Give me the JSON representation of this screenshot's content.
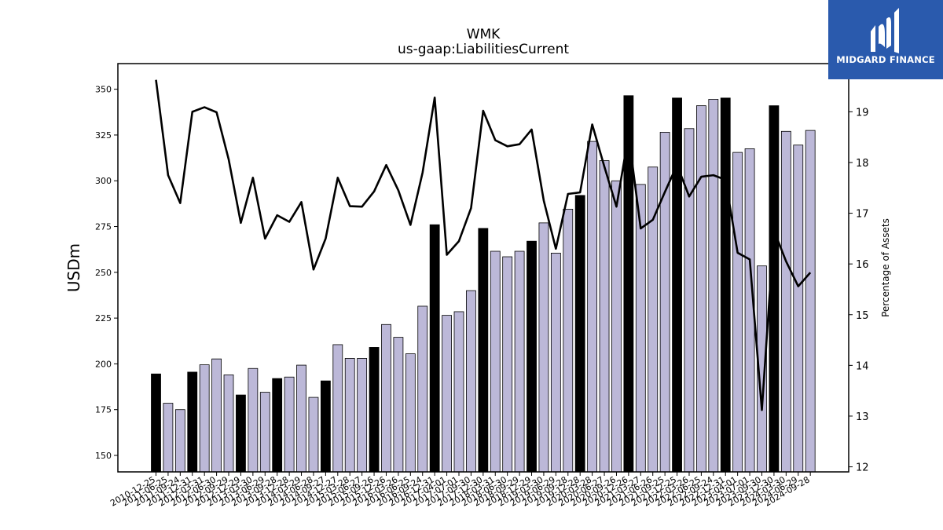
{
  "brand": {
    "name": "MIDGARD FINANCE"
  },
  "chart_data": {
    "type": "bar",
    "title": "WMK",
    "subtitle": "us-gaap:LiabilitiesCurrent",
    "ylabel": "USDm",
    "y2label": "Percentage of Assets",
    "ylim": [
      141,
      364
    ],
    "y2lim": [
      11.9,
      19.95
    ],
    "yticks": [
      150,
      175,
      200,
      225,
      250,
      275,
      300,
      325,
      350
    ],
    "y2ticks": [
      12,
      13,
      14,
      15,
      16,
      17,
      18,
      19
    ],
    "colors": {
      "annual": "#000000",
      "quarter": "#bcb8d8",
      "line": "#000000"
    },
    "categories": [
      "2010-12-25",
      "2011-06-25",
      "2011-09-24",
      "2011-12-31",
      "2012-03-31",
      "2012-06-30",
      "2012-09-29",
      "2012-12-29",
      "2013-03-30",
      "2013-06-29",
      "2013-09-28",
      "2013-12-28",
      "2014-03-29",
      "2014-06-28",
      "2014-09-27",
      "2014-12-27",
      "2015-03-28",
      "2015-06-27",
      "2015-09-26",
      "2015-12-26",
      "2016-03-26",
      "2016-06-25",
      "2016-09-24",
      "2016-12-31",
      "2017-04-01",
      "2017-07-01",
      "2017-09-30",
      "2017-12-30",
      "2018-03-31",
      "2018-06-30",
      "2018-09-29",
      "2018-12-29",
      "2019-03-30",
      "2019-06-29",
      "2019-09-28",
      "2019-12-28",
      "2020-03-28",
      "2020-06-27",
      "2020-09-26",
      "2020-12-26",
      "2021-03-27",
      "2021-06-26",
      "2021-09-25",
      "2021-12-25",
      "2022-03-26",
      "2022-06-25",
      "2022-09-24",
      "2022-12-31",
      "2023-04-01",
      "2023-07-01",
      "2023-09-30",
      "2023-12-30",
      "2024-03-30",
      "2024-06-29",
      "2024-09-28"
    ],
    "values": [
      194.5,
      178.5,
      175.0,
      195.5,
      199.5,
      202.7,
      194.0,
      183.0,
      197.5,
      184.5,
      192.0,
      192.8,
      199.3,
      181.7,
      190.7,
      210.5,
      203.0,
      203.0,
      209.0,
      221.5,
      214.5,
      205.5,
      231.5,
      276.0,
      226.5,
      228.5,
      240.0,
      274.0,
      261.5,
      258.5,
      261.5,
      267.0,
      277.0,
      260.5,
      284.5,
      292.0,
      321.5,
      311.0,
      300.0,
      346.5,
      298.0,
      307.5,
      326.5,
      345.2,
      328.5,
      341.0,
      344.5,
      345.2,
      315.5,
      317.5,
      253.5,
      341.0,
      327.0,
      319.5,
      327.5
    ],
    "annual": [
      true,
      false,
      false,
      true,
      false,
      false,
      false,
      true,
      false,
      false,
      true,
      false,
      false,
      false,
      true,
      false,
      false,
      false,
      true,
      false,
      false,
      false,
      false,
      true,
      false,
      false,
      false,
      true,
      false,
      false,
      false,
      true,
      false,
      false,
      false,
      true,
      false,
      false,
      false,
      true,
      false,
      false,
      false,
      true,
      false,
      false,
      false,
      true,
      false,
      false,
      false,
      true,
      false,
      false,
      false
    ],
    "percent_of_assets": [
      19.63,
      17.75,
      17.2,
      19.0,
      19.09,
      18.99,
      18.06,
      16.81,
      17.7,
      16.5,
      16.96,
      16.83,
      17.22,
      15.89,
      16.5,
      17.7,
      17.14,
      17.13,
      17.43,
      17.95,
      17.45,
      16.77,
      17.8,
      19.28,
      16.18,
      16.45,
      17.1,
      19.02,
      18.44,
      18.32,
      18.36,
      18.65,
      17.25,
      16.3,
      17.38,
      17.41,
      18.75,
      17.92,
      17.13,
      18.55,
      16.7,
      16.87,
      17.42,
      17.95,
      17.33,
      17.72,
      17.75,
      17.66,
      16.22,
      16.09,
      13.12,
      16.66,
      16.05,
      15.56,
      15.83
    ]
  }
}
